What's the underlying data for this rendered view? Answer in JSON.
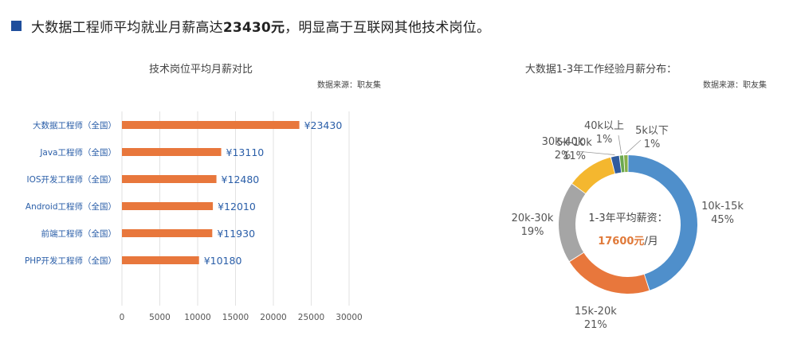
{
  "headline": {
    "prefix": "大数据工程师平均就业月薪高达",
    "emphasis": "23430元",
    "suffix": "，明显高于互联网其他技术岗位。"
  },
  "chart_data": [
    {
      "type": "bar",
      "orientation": "horizontal",
      "title": "技术岗位平均月薪对比",
      "source": "数据来源：职友集",
      "categories": [
        "大数据工程师（全国）",
        "Java工程师（全国）",
        "IOS开发工程师（全国）",
        "Android工程师（全国）",
        "前端工程师（全国）",
        "PHP开发工程师（全国）"
      ],
      "values": [
        23430,
        13110,
        12480,
        12010,
        11930,
        10180
      ],
      "value_labels": [
        "¥23430",
        "¥13110",
        "¥12480",
        "¥12010",
        "¥11930",
        "¥10180"
      ],
      "xlim": [
        0,
        30000
      ],
      "xticks": [
        "0",
        "5000",
        "10000",
        "15000",
        "20000",
        "25000",
        "30000"
      ],
      "grid": "vertical",
      "color": "#e8773c"
    },
    {
      "type": "pie",
      "style": "donut",
      "title": "大数据1-3年工作经验月薪分布：",
      "source": "数据来源：职友集",
      "center_label": "1-3年平均薪资：",
      "center_value": "17600元",
      "center_unit": "/月",
      "slices": [
        {
          "label": "10k-15k",
          "value": 45,
          "pct": "45%",
          "color": "#4f8fcb"
        },
        {
          "label": "15k-20k",
          "value": 21,
          "pct": "21%",
          "color": "#e8773c"
        },
        {
          "label": "20k-30k",
          "value": 19,
          "pct": "19%",
          "color": "#a5a5a5"
        },
        {
          "label": "5k-10k",
          "value": 11,
          "pct": "11%",
          "color": "#f4b72f"
        },
        {
          "label": "30k-40k",
          "value": 2,
          "pct": "2%",
          "color": "#2f5b9e"
        },
        {
          "label": "40k以上",
          "value": 1,
          "pct": "1%",
          "color": "#6aa84f"
        },
        {
          "label": "5k以下",
          "value": 1,
          "pct": "1%",
          "color": "#86b04a"
        }
      ]
    }
  ]
}
